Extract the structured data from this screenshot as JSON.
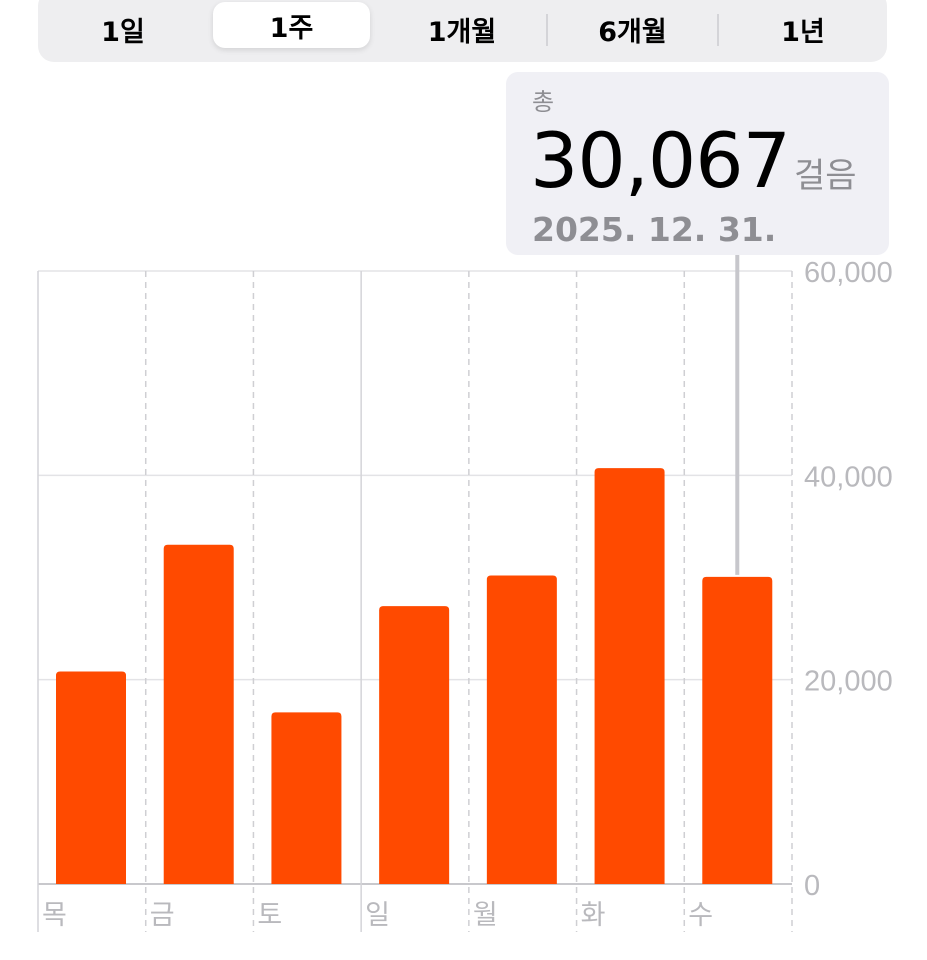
{
  "segmented_control": {
    "items": [
      {
        "label": "1일",
        "selected": false
      },
      {
        "label": "1주",
        "selected": true
      },
      {
        "label": "1개월",
        "selected": false
      },
      {
        "label": "6개월",
        "selected": false
      },
      {
        "label": "1년",
        "selected": false
      }
    ]
  },
  "callout": {
    "label": "총",
    "value": "30,067",
    "unit": "걸음",
    "date": "2025. 12. 31."
  },
  "chart_data": {
    "type": "bar",
    "categories": [
      "목",
      "금",
      "토",
      "일",
      "월",
      "화",
      "수"
    ],
    "values": [
      20800,
      33200,
      16800,
      27200,
      30200,
      40700,
      30067
    ],
    "ylim": [
      0,
      60000
    ],
    "yticks": [
      0,
      20000,
      40000,
      60000
    ],
    "ytick_labels": [
      "0",
      "20,000",
      "40,000",
      "60,000"
    ],
    "y_axis_position": "right",
    "grid": true,
    "highlighted_index": 6,
    "bar_color": "#ff4a00"
  }
}
